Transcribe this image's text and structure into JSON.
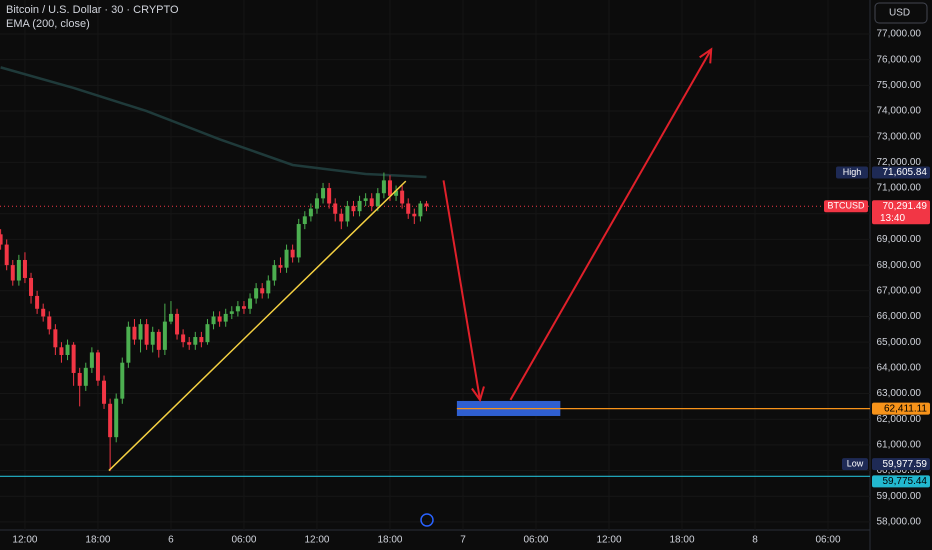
{
  "chart_data": {
    "type": "candlestick",
    "title": "Bitcoin / U.S. Dollar · 30 · CRYPTO",
    "indicator": "EMA (200, close)",
    "currency_button": "USD",
    "up_color": "#4caf50",
    "down_color": "#f23645",
    "ylim": [
      57685,
      78324
    ],
    "xlim": [
      -2.05,
      69.45
    ],
    "yticks": [
      {
        "value": 58000,
        "label": "58,000.00"
      },
      {
        "value": 59000,
        "label": "59,000.00"
      },
      {
        "value": 60000,
        "label": "60,000.00"
      },
      {
        "value": 61000,
        "label": "61,000.00"
      },
      {
        "value": 62000,
        "label": "62,000.00"
      },
      {
        "value": 63000,
        "label": "63,000.00"
      },
      {
        "value": 64000,
        "label": "64,000.00"
      },
      {
        "value": 65000,
        "label": "65,000.00"
      },
      {
        "value": 66000,
        "label": "66,000.00"
      },
      {
        "value": 67000,
        "label": "67,000.00"
      },
      {
        "value": 68000,
        "label": "68,000.00"
      },
      {
        "value": 69000,
        "label": "69,000.00"
      },
      {
        "value": 70000,
        "label": "70,000.00"
      },
      {
        "value": 71000,
        "label": "71,000.00"
      },
      {
        "value": 72000,
        "label": "72,000.00"
      },
      {
        "value": 73000,
        "label": "73,000.00"
      },
      {
        "value": 74000,
        "label": "74,000.00"
      },
      {
        "value": 75000,
        "label": "75,000.00"
      },
      {
        "value": 76000,
        "label": "76,000.00"
      },
      {
        "value": 77000,
        "label": "77,000.00"
      }
    ],
    "xticks": [
      {
        "value": 0,
        "label": "12:00"
      },
      {
        "value": 6,
        "label": "18:00"
      },
      {
        "value": 12,
        "label": "6"
      },
      {
        "value": 18,
        "label": "06:00"
      },
      {
        "value": 24,
        "label": "12:00"
      },
      {
        "value": 30,
        "label": "18:00"
      },
      {
        "value": 36,
        "label": "7"
      },
      {
        "value": 42,
        "label": "06:00"
      },
      {
        "value": 48,
        "label": "12:00"
      },
      {
        "value": 54,
        "label": "18:00"
      },
      {
        "value": 60,
        "label": "8"
      },
      {
        "value": 66,
        "label": "06:00"
      }
    ],
    "grid": true,
    "x": [
      -2,
      -1.5,
      -1,
      -0.5,
      0,
      0.5,
      1,
      1.5,
      2,
      2.5,
      3,
      3.5,
      4,
      4.5,
      5,
      5.5,
      6,
      6.5,
      7,
      7.5,
      8,
      8.5,
      9,
      9.5,
      10,
      10.5,
      11,
      11.5,
      12,
      12.5,
      13,
      13.5,
      14,
      14.5,
      15,
      15.5,
      16,
      16.5,
      17,
      17.5,
      18,
      18.5,
      19,
      19.5,
      20,
      20.5,
      21,
      21.5,
      22,
      22.5,
      23,
      23.5,
      24,
      24.5,
      25,
      25.5,
      26,
      26.5,
      27,
      27.5,
      28,
      28.5,
      29,
      29.5,
      30,
      30.5,
      31,
      31.5,
      32,
      32.5,
      33
    ],
    "candles": [
      [
        69200,
        69400,
        68600,
        68800
      ],
      [
        68800,
        69000,
        67800,
        68000
      ],
      [
        68000,
        68200,
        67200,
        67400
      ],
      [
        67400,
        68400,
        67200,
        68200
      ],
      [
        68200,
        68500,
        67300,
        67500
      ],
      [
        67500,
        67700,
        66500,
        66800
      ],
      [
        66800,
        67000,
        66100,
        66300
      ],
      [
        66300,
        66500,
        65800,
        66000
      ],
      [
        66000,
        66200,
        65300,
        65500
      ],
      [
        65500,
        65700,
        64500,
        64800
      ],
      [
        64800,
        65000,
        64200,
        64500
      ],
      [
        64500,
        65100,
        64300,
        64900
      ],
      [
        64900,
        65000,
        63300,
        63800
      ],
      [
        63800,
        64000,
        62500,
        63300
      ],
      [
        63300,
        64200,
        63100,
        64000
      ],
      [
        64000,
        64800,
        63800,
        64600
      ],
      [
        64600,
        64700,
        63300,
        63500
      ],
      [
        63500,
        63700,
        62400,
        62600
      ],
      [
        62600,
        62800,
        59977.59,
        61300
      ],
      [
        61300,
        63000,
        61100,
        62800
      ],
      [
        62800,
        64400,
        62600,
        64200
      ],
      [
        64200,
        65800,
        64000,
        65600
      ],
      [
        65600,
        65900,
        64900,
        65100
      ],
      [
        65100,
        65900,
        64600,
        65700
      ],
      [
        65700,
        65900,
        64700,
        64900
      ],
      [
        64900,
        65600,
        64600,
        65400
      ],
      [
        65400,
        65500,
        64400,
        64700
      ],
      [
        64700,
        66500,
        64500,
        65800
      ],
      [
        65800,
        66600,
        65700,
        66100
      ],
      [
        66100,
        66300,
        65100,
        65300
      ],
      [
        65300,
        65500,
        64800,
        65000
      ],
      [
        65000,
        65200,
        64700,
        64900
      ],
      [
        64900,
        65400,
        64700,
        65200
      ],
      [
        65200,
        65400,
        64800,
        65000
      ],
      [
        65000,
        65900,
        64900,
        65700
      ],
      [
        65700,
        66200,
        65500,
        66000
      ],
      [
        66000,
        66200,
        65600,
        65800
      ],
      [
        65800,
        66300,
        65600,
        66100
      ],
      [
        66100,
        66400,
        65900,
        66200
      ],
      [
        66200,
        66600,
        66000,
        66400
      ],
      [
        66400,
        66600,
        66100,
        66300
      ],
      [
        66300,
        66900,
        66100,
        66700
      ],
      [
        66700,
        67300,
        66500,
        67100
      ],
      [
        67100,
        67300,
        66700,
        66900
      ],
      [
        66900,
        67600,
        66700,
        67400
      ],
      [
        67400,
        68200,
        67200,
        68000
      ],
      [
        68000,
        68300,
        67700,
        67900
      ],
      [
        67900,
        68800,
        67700,
        68600
      ],
      [
        68600,
        68800,
        68100,
        68300
      ],
      [
        68300,
        69800,
        68100,
        69600
      ],
      [
        69600,
        70100,
        69400,
        69900
      ],
      [
        69900,
        70400,
        69700,
        70200
      ],
      [
        70200,
        70800,
        70000,
        70600
      ],
      [
        70600,
        71200,
        70400,
        71000
      ],
      [
        71000,
        71200,
        70200,
        70400
      ],
      [
        70400,
        70600,
        69700,
        70000
      ],
      [
        70000,
        70200,
        69400,
        69700
      ],
      [
        69700,
        70500,
        69500,
        70300
      ],
      [
        70300,
        70500,
        69900,
        70100
      ],
      [
        70100,
        70700,
        69900,
        70500
      ],
      [
        70500,
        70800,
        70300,
        70600
      ],
      [
        70600,
        70800,
        70100,
        70300
      ],
      [
        70300,
        71000,
        70100,
        70800
      ],
      [
        70800,
        71605.84,
        70600,
        71300
      ],
      [
        71300,
        71500,
        70500,
        70700
      ],
      [
        70700,
        71100,
        70500,
        70900
      ],
      [
        70900,
        71100,
        70200,
        70400
      ],
      [
        70400,
        70600,
        69800,
        70000
      ],
      [
        70000,
        70200,
        69600,
        69900
      ],
      [
        69900,
        70500,
        69700,
        70400
      ],
      [
        70400,
        70500,
        70100,
        70291.49
      ]
    ],
    "ema": {
      "color": "#1f3a3a",
      "x": [
        -2,
        4,
        10,
        16,
        22,
        28,
        33
      ],
      "values": [
        75700,
        74900,
        74000,
        72900,
        71900,
        71550,
        71430
      ]
    },
    "trendline": {
      "color": "#f5d142",
      "x": [
        6.9,
        31.3
      ],
      "y": [
        60000,
        71270
      ]
    },
    "arrows": [
      {
        "color": "#e0202a",
        "x": [
          34.4,
          37.4
        ],
        "y": [
          71300,
          62750
        ]
      },
      {
        "color": "#e0202a",
        "x": [
          39.9,
          56.4
        ],
        "y": [
          62750,
          76400
        ]
      }
    ],
    "zone": {
      "color": "#2f5fd0",
      "x": [
        35.5,
        44
      ],
      "y": [
        62125,
        62710
      ]
    },
    "price_labels": [
      {
        "name": "High",
        "value": 71605.84,
        "label": "71,605.84",
        "color": "#1e2a55"
      },
      {
        "name": "BTCUSD",
        "value": 70291.49,
        "label": "70,291.49",
        "countdown": "13:40",
        "color": "#f23645"
      },
      {
        "value": 62411.11,
        "label": "62,411.11",
        "color": "#f7931a"
      },
      {
        "name": "Low",
        "value": 59977.59,
        "label": "59,977.59",
        "color": "#1e2a55"
      },
      {
        "value": 59775.44,
        "label": "59,775.44",
        "color": "#22b8cf"
      }
    ]
  }
}
